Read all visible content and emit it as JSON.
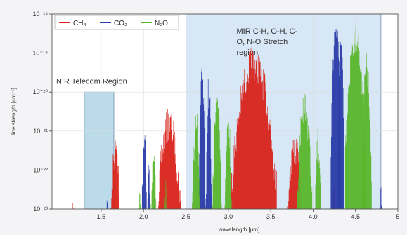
{
  "chart_data": {
    "type": "area",
    "xlabel": "wavelength [μm]",
    "ylabel": "line strength [cm⁻¹]",
    "xlim": [
      0.92,
      5.0
    ],
    "ylog_range": [
      -23,
      -18
    ],
    "xticks": [
      "1.5",
      "2.0",
      "2.5",
      "3.0",
      "3.5",
      "4.0",
      "4.5",
      "5"
    ],
    "xtick_values": [
      1.5,
      2.0,
      2.5,
      3.0,
      3.5,
      4.0,
      4.5,
      5.0
    ],
    "yticks": [
      "10⁻²³",
      "10⁻²²",
      "10⁻²¹",
      "10⁻²⁰",
      "10⁻¹⁹",
      "10⁻¹⁸"
    ],
    "ytick_exponents": [
      -23,
      -22,
      -21,
      -20,
      -19,
      -18
    ],
    "grid": true,
    "legend_position": "top-left",
    "regions": [
      {
        "label_lines": [
          "NIR Telecom Region"
        ],
        "x_range": [
          1.3,
          1.65
        ],
        "y_top_exp": -20.0,
        "color": "#8ec2dc"
      },
      {
        "label_lines": [
          "MIR C-H, O-H, C-",
          "O, N-O Stretch",
          "region"
        ],
        "x_range": [
          2.5,
          4.8
        ],
        "y_top_exp": -17.8,
        "color": "#bcd7ee"
      }
    ],
    "series": [
      {
        "name": "CH4",
        "legend": "CH₄",
        "color": "#d8231a",
        "bands": [
          {
            "center": 1.17,
            "halfwidth": 0.035,
            "peak_exp": -22.4
          },
          {
            "center": 1.37,
            "halfwidth": 0.05,
            "peak_exp": -22.5
          },
          {
            "center": 1.67,
            "halfwidth": 0.08,
            "peak_exp": -21.1
          },
          {
            "center": 1.88,
            "halfwidth": 0.03,
            "peak_exp": -22.7
          },
          {
            "center": 2.3,
            "halfwidth": 0.17,
            "peak_exp": -20.4
          },
          {
            "center": 3.3,
            "halfwidth": 0.27,
            "peak_exp": -18.8
          },
          {
            "center": 3.78,
            "halfwidth": 0.12,
            "peak_exp": -21.0
          },
          {
            "center": 4.25,
            "halfwidth": 0.06,
            "peak_exp": -22.2
          }
        ]
      },
      {
        "name": "CO2",
        "legend": "CO₂",
        "color": "#2a3ca8",
        "bands": [
          {
            "center": 1.43,
            "halfwidth": 0.025,
            "peak_exp": -22.6
          },
          {
            "center": 1.57,
            "halfwidth": 0.02,
            "peak_exp": -22.7
          },
          {
            "center": 2.01,
            "halfwidth": 0.04,
            "peak_exp": -21.0
          },
          {
            "center": 2.06,
            "halfwidth": 0.025,
            "peak_exp": -21.2
          },
          {
            "center": 2.69,
            "halfwidth": 0.04,
            "peak_exp": -19.3
          },
          {
            "center": 2.77,
            "halfwidth": 0.035,
            "peak_exp": -19.5
          },
          {
            "center": 4.27,
            "halfwidth": 0.06,
            "peak_exp": -17.7
          },
          {
            "center": 4.33,
            "halfwidth": 0.035,
            "peak_exp": -18.0
          },
          {
            "center": 4.8,
            "halfwidth": 0.03,
            "peak_exp": -22.2
          }
        ]
      },
      {
        "name": "N2O",
        "legend": "N₂O",
        "color": "#5ab52c",
        "bands": [
          {
            "center": 1.96,
            "halfwidth": 0.03,
            "peak_exp": -22.3
          },
          {
            "center": 2.12,
            "halfwidth": 0.05,
            "peak_exp": -21.5
          },
          {
            "center": 2.26,
            "halfwidth": 0.03,
            "peak_exp": -22.0
          },
          {
            "center": 2.47,
            "halfwidth": 0.025,
            "peak_exp": -22.4
          },
          {
            "center": 2.62,
            "halfwidth": 0.06,
            "peak_exp": -20.4
          },
          {
            "center": 2.87,
            "halfwidth": 0.06,
            "peak_exp": -19.8
          },
          {
            "center": 3.0,
            "halfwidth": 0.05,
            "peak_exp": -20.5
          },
          {
            "center": 3.9,
            "halfwidth": 0.1,
            "peak_exp": -19.9
          },
          {
            "center": 4.06,
            "halfwidth": 0.05,
            "peak_exp": -20.9
          },
          {
            "center": 4.5,
            "halfwidth": 0.12,
            "peak_exp": -18.1
          },
          {
            "center": 4.63,
            "halfwidth": 0.06,
            "peak_exp": -19.0
          }
        ]
      }
    ]
  }
}
